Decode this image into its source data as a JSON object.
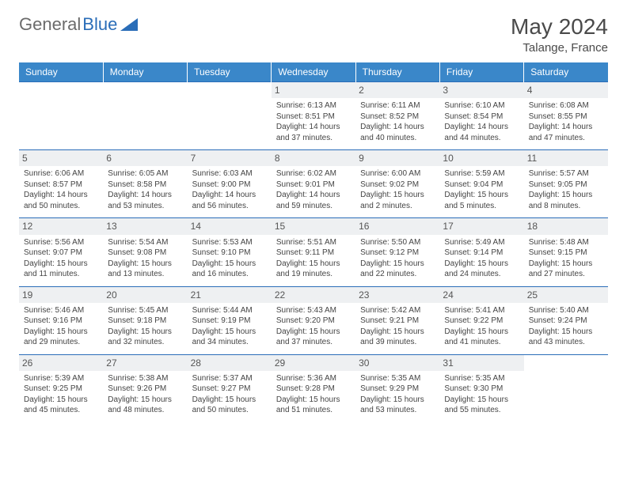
{
  "brand": {
    "left": "General",
    "right": "Blue"
  },
  "title": "May 2024",
  "location": "Talange, France",
  "colors": {
    "header_bg": "#3a87c9",
    "row_border": "#2a6db8",
    "daynum_bg": "#eef0f2",
    "text": "#444444"
  },
  "day_headers": [
    "Sunday",
    "Monday",
    "Tuesday",
    "Wednesday",
    "Thursday",
    "Friday",
    "Saturday"
  ],
  "weeks": [
    [
      null,
      null,
      null,
      {
        "n": "1",
        "sr": "6:13 AM",
        "ss": "8:51 PM",
        "dl": "14 hours and 37 minutes."
      },
      {
        "n": "2",
        "sr": "6:11 AM",
        "ss": "8:52 PM",
        "dl": "14 hours and 40 minutes."
      },
      {
        "n": "3",
        "sr": "6:10 AM",
        "ss": "8:54 PM",
        "dl": "14 hours and 44 minutes."
      },
      {
        "n": "4",
        "sr": "6:08 AM",
        "ss": "8:55 PM",
        "dl": "14 hours and 47 minutes."
      }
    ],
    [
      {
        "n": "5",
        "sr": "6:06 AM",
        "ss": "8:57 PM",
        "dl": "14 hours and 50 minutes."
      },
      {
        "n": "6",
        "sr": "6:05 AM",
        "ss": "8:58 PM",
        "dl": "14 hours and 53 minutes."
      },
      {
        "n": "7",
        "sr": "6:03 AM",
        "ss": "9:00 PM",
        "dl": "14 hours and 56 minutes."
      },
      {
        "n": "8",
        "sr": "6:02 AM",
        "ss": "9:01 PM",
        "dl": "14 hours and 59 minutes."
      },
      {
        "n": "9",
        "sr": "6:00 AM",
        "ss": "9:02 PM",
        "dl": "15 hours and 2 minutes."
      },
      {
        "n": "10",
        "sr": "5:59 AM",
        "ss": "9:04 PM",
        "dl": "15 hours and 5 minutes."
      },
      {
        "n": "11",
        "sr": "5:57 AM",
        "ss": "9:05 PM",
        "dl": "15 hours and 8 minutes."
      }
    ],
    [
      {
        "n": "12",
        "sr": "5:56 AM",
        "ss": "9:07 PM",
        "dl": "15 hours and 11 minutes."
      },
      {
        "n": "13",
        "sr": "5:54 AM",
        "ss": "9:08 PM",
        "dl": "15 hours and 13 minutes."
      },
      {
        "n": "14",
        "sr": "5:53 AM",
        "ss": "9:10 PM",
        "dl": "15 hours and 16 minutes."
      },
      {
        "n": "15",
        "sr": "5:51 AM",
        "ss": "9:11 PM",
        "dl": "15 hours and 19 minutes."
      },
      {
        "n": "16",
        "sr": "5:50 AM",
        "ss": "9:12 PM",
        "dl": "15 hours and 22 minutes."
      },
      {
        "n": "17",
        "sr": "5:49 AM",
        "ss": "9:14 PM",
        "dl": "15 hours and 24 minutes."
      },
      {
        "n": "18",
        "sr": "5:48 AM",
        "ss": "9:15 PM",
        "dl": "15 hours and 27 minutes."
      }
    ],
    [
      {
        "n": "19",
        "sr": "5:46 AM",
        "ss": "9:16 PM",
        "dl": "15 hours and 29 minutes."
      },
      {
        "n": "20",
        "sr": "5:45 AM",
        "ss": "9:18 PM",
        "dl": "15 hours and 32 minutes."
      },
      {
        "n": "21",
        "sr": "5:44 AM",
        "ss": "9:19 PM",
        "dl": "15 hours and 34 minutes."
      },
      {
        "n": "22",
        "sr": "5:43 AM",
        "ss": "9:20 PM",
        "dl": "15 hours and 37 minutes."
      },
      {
        "n": "23",
        "sr": "5:42 AM",
        "ss": "9:21 PM",
        "dl": "15 hours and 39 minutes."
      },
      {
        "n": "24",
        "sr": "5:41 AM",
        "ss": "9:22 PM",
        "dl": "15 hours and 41 minutes."
      },
      {
        "n": "25",
        "sr": "5:40 AM",
        "ss": "9:24 PM",
        "dl": "15 hours and 43 minutes."
      }
    ],
    [
      {
        "n": "26",
        "sr": "5:39 AM",
        "ss": "9:25 PM",
        "dl": "15 hours and 45 minutes."
      },
      {
        "n": "27",
        "sr": "5:38 AM",
        "ss": "9:26 PM",
        "dl": "15 hours and 48 minutes."
      },
      {
        "n": "28",
        "sr": "5:37 AM",
        "ss": "9:27 PM",
        "dl": "15 hours and 50 minutes."
      },
      {
        "n": "29",
        "sr": "5:36 AM",
        "ss": "9:28 PM",
        "dl": "15 hours and 51 minutes."
      },
      {
        "n": "30",
        "sr": "5:35 AM",
        "ss": "9:29 PM",
        "dl": "15 hours and 53 minutes."
      },
      {
        "n": "31",
        "sr": "5:35 AM",
        "ss": "9:30 PM",
        "dl": "15 hours and 55 minutes."
      },
      null
    ]
  ],
  "labels": {
    "sunrise": "Sunrise:",
    "sunset": "Sunset:",
    "daylight": "Daylight:"
  }
}
